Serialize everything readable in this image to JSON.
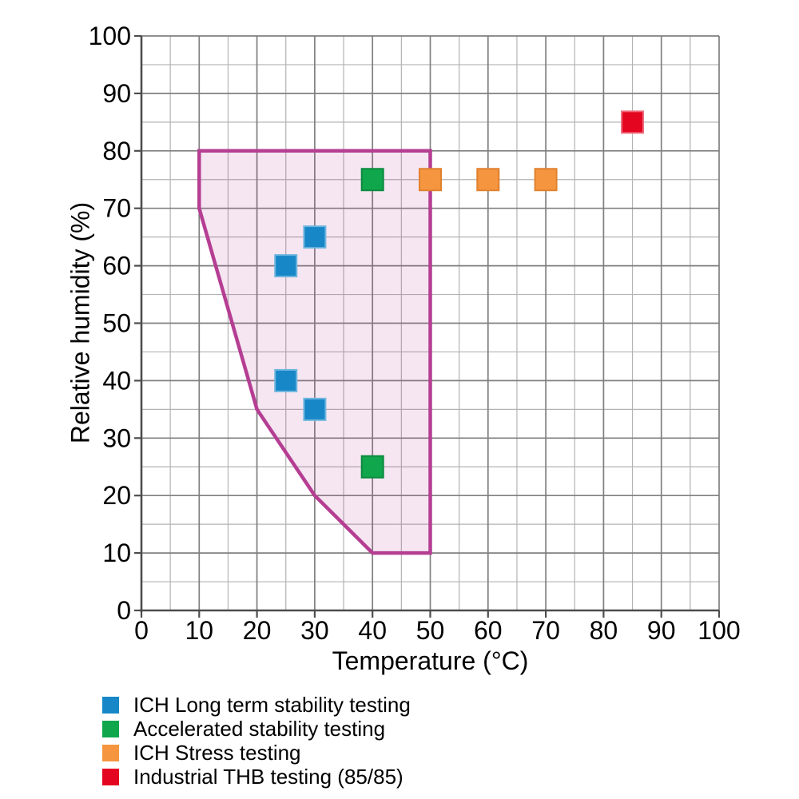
{
  "chart_data": {
    "type": "scatter",
    "title": "",
    "xlabel": "Temperature (°C)",
    "ylabel": "Relative humidity (%)",
    "xlim": [
      0,
      100
    ],
    "ylim": [
      0,
      100
    ],
    "x_major_ticks": [
      0,
      10,
      20,
      30,
      40,
      50,
      60,
      70,
      80,
      90,
      100
    ],
    "y_major_ticks": [
      0,
      10,
      20,
      30,
      40,
      50,
      60,
      70,
      80,
      90,
      100
    ],
    "minor_tick_step": 5,
    "grid": "on",
    "marker": "square",
    "legend_position": "below-left",
    "region": {
      "description": "shaded allowed climate envelope",
      "stroke_color": "#b53e93",
      "fill_color": "rgba(181,62,147,0.13)",
      "vertices": [
        [
          10,
          70
        ],
        [
          10,
          80
        ],
        [
          50,
          80
        ],
        [
          50,
          10
        ],
        [
          40,
          10
        ],
        [
          30,
          20
        ],
        [
          20,
          35
        ]
      ]
    },
    "series": [
      {
        "name": "ICH Long term stability testing",
        "color": "#1787c8",
        "edge_color": "#6fb6de",
        "points": [
          [
            25,
            60
          ],
          [
            30,
            65
          ],
          [
            25,
            40
          ],
          [
            30,
            35
          ]
        ]
      },
      {
        "name": "Accelerated stability testing",
        "color": "#10a64c",
        "edge_color": "#0c8a3f",
        "points": [
          [
            40,
            75
          ],
          [
            40,
            25
          ]
        ]
      },
      {
        "name": "ICH Stress testing",
        "color": "#f5953f",
        "edge_color": "#e0812f",
        "points": [
          [
            50,
            75
          ],
          [
            60,
            75
          ],
          [
            70,
            75
          ]
        ]
      },
      {
        "name": "Industrial THB testing (85/85)",
        "color": "#e40521",
        "edge_color": "#ee6b7c",
        "points": [
          [
            85,
            85
          ]
        ]
      }
    ],
    "colors": {
      "major_grid": "#7f7f7f",
      "minor_grid": "#b3b3b3",
      "axis": "#4d4d4d",
      "text": "#000000"
    }
  }
}
